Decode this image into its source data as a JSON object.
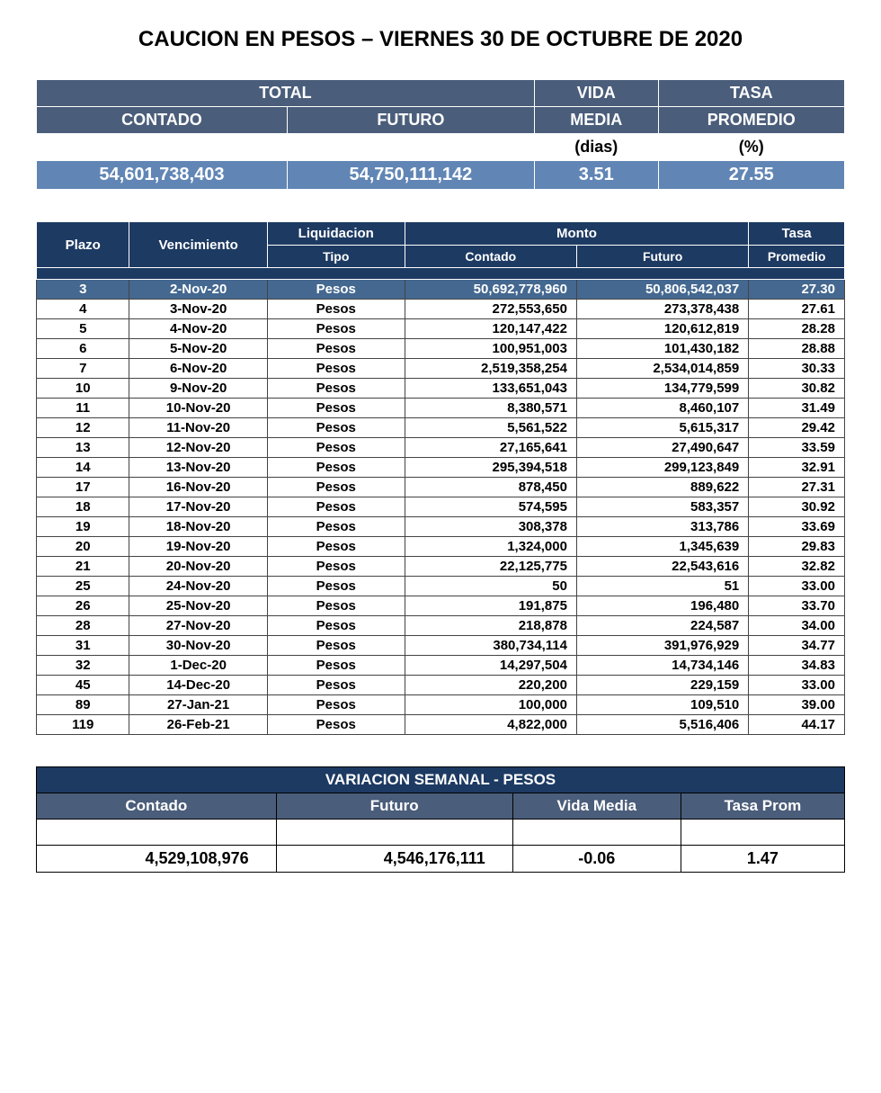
{
  "title": "CAUCION EN PESOS – VIERNES 30 DE OCTUBRE DE 2020",
  "summary": {
    "headers": {
      "total": "TOTAL",
      "vida": "VIDA",
      "tasa": "TASA",
      "contado": "CONTADO",
      "futuro": "FUTURO",
      "media": "MEDIA",
      "promedio": "PROMEDIO",
      "dias": "(dias)",
      "pct": "(%)"
    },
    "values": {
      "contado": "54,601,738,403",
      "futuro": "54,750,111,142",
      "vida_media": "3.51",
      "tasa_promedio": "27.55"
    },
    "colors": {
      "header_bg": "#4a5d7a",
      "header_fg": "#ffffff",
      "value_bg": "#6186b5",
      "value_fg": "#ffffff"
    }
  },
  "detail": {
    "headers": {
      "plazo": "Plazo",
      "vencimiento": "Vencimiento",
      "liquidacion": "Liquidacion",
      "tipo": "Tipo",
      "monto": "Monto",
      "contado": "Contado",
      "futuro": "Futuro",
      "tasa": "Tasa",
      "promedio": "Promedio"
    },
    "colors": {
      "header_bg": "#1d3a62",
      "header_fg": "#ffffff",
      "highlight_bg": "#446890",
      "highlight_fg": "#ffffff",
      "border": "#444444"
    },
    "rows": [
      {
        "plazo": "3",
        "venc": "2-Nov-20",
        "tipo": "Pesos",
        "contado": "50,692,778,960",
        "futuro": "50,806,542,037",
        "tasa": "27.30",
        "highlight": true
      },
      {
        "plazo": "4",
        "venc": "3-Nov-20",
        "tipo": "Pesos",
        "contado": "272,553,650",
        "futuro": "273,378,438",
        "tasa": "27.61"
      },
      {
        "plazo": "5",
        "venc": "4-Nov-20",
        "tipo": "Pesos",
        "contado": "120,147,422",
        "futuro": "120,612,819",
        "tasa": "28.28"
      },
      {
        "plazo": "6",
        "venc": "5-Nov-20",
        "tipo": "Pesos",
        "contado": "100,951,003",
        "futuro": "101,430,182",
        "tasa": "28.88"
      },
      {
        "plazo": "7",
        "venc": "6-Nov-20",
        "tipo": "Pesos",
        "contado": "2,519,358,254",
        "futuro": "2,534,014,859",
        "tasa": "30.33"
      },
      {
        "plazo": "10",
        "venc": "9-Nov-20",
        "tipo": "Pesos",
        "contado": "133,651,043",
        "futuro": "134,779,599",
        "tasa": "30.82"
      },
      {
        "plazo": "11",
        "venc": "10-Nov-20",
        "tipo": "Pesos",
        "contado": "8,380,571",
        "futuro": "8,460,107",
        "tasa": "31.49"
      },
      {
        "plazo": "12",
        "venc": "11-Nov-20",
        "tipo": "Pesos",
        "contado": "5,561,522",
        "futuro": "5,615,317",
        "tasa": "29.42"
      },
      {
        "plazo": "13",
        "venc": "12-Nov-20",
        "tipo": "Pesos",
        "contado": "27,165,641",
        "futuro": "27,490,647",
        "tasa": "33.59"
      },
      {
        "plazo": "14",
        "venc": "13-Nov-20",
        "tipo": "Pesos",
        "contado": "295,394,518",
        "futuro": "299,123,849",
        "tasa": "32.91"
      },
      {
        "plazo": "17",
        "venc": "16-Nov-20",
        "tipo": "Pesos",
        "contado": "878,450",
        "futuro": "889,622",
        "tasa": "27.31"
      },
      {
        "plazo": "18",
        "venc": "17-Nov-20",
        "tipo": "Pesos",
        "contado": "574,595",
        "futuro": "583,357",
        "tasa": "30.92"
      },
      {
        "plazo": "19",
        "venc": "18-Nov-20",
        "tipo": "Pesos",
        "contado": "308,378",
        "futuro": "313,786",
        "tasa": "33.69"
      },
      {
        "plazo": "20",
        "venc": "19-Nov-20",
        "tipo": "Pesos",
        "contado": "1,324,000",
        "futuro": "1,345,639",
        "tasa": "29.83"
      },
      {
        "plazo": "21",
        "venc": "20-Nov-20",
        "tipo": "Pesos",
        "contado": "22,125,775",
        "futuro": "22,543,616",
        "tasa": "32.82"
      },
      {
        "plazo": "25",
        "venc": "24-Nov-20",
        "tipo": "Pesos",
        "contado": "50",
        "futuro": "51",
        "tasa": "33.00"
      },
      {
        "plazo": "26",
        "venc": "25-Nov-20",
        "tipo": "Pesos",
        "contado": "191,875",
        "futuro": "196,480",
        "tasa": "33.70"
      },
      {
        "plazo": "28",
        "venc": "27-Nov-20",
        "tipo": "Pesos",
        "contado": "218,878",
        "futuro": "224,587",
        "tasa": "34.00"
      },
      {
        "plazo": "31",
        "venc": "30-Nov-20",
        "tipo": "Pesos",
        "contado": "380,734,114",
        "futuro": "391,976,929",
        "tasa": "34.77"
      },
      {
        "plazo": "32",
        "venc": "1-Dec-20",
        "tipo": "Pesos",
        "contado": "14,297,504",
        "futuro": "14,734,146",
        "tasa": "34.83"
      },
      {
        "plazo": "45",
        "venc": "14-Dec-20",
        "tipo": "Pesos",
        "contado": "220,200",
        "futuro": "229,159",
        "tasa": "33.00"
      },
      {
        "plazo": "89",
        "venc": "27-Jan-21",
        "tipo": "Pesos",
        "contado": "100,000",
        "futuro": "109,510",
        "tasa": "39.00"
      },
      {
        "plazo": "119",
        "venc": "26-Feb-21",
        "tipo": "Pesos",
        "contado": "4,822,000",
        "futuro": "5,516,406",
        "tasa": "44.17"
      }
    ]
  },
  "weekly": {
    "title": "VARIACION SEMANAL - PESOS",
    "headers": {
      "contado": "Contado",
      "futuro": "Futuro",
      "vida_media": "Vida Media",
      "tasa_prom": "Tasa Prom"
    },
    "values": {
      "contado": "4,529,108,976",
      "futuro": "4,546,176,111",
      "vida_media": "-0.06",
      "tasa_prom": "1.47"
    },
    "colors": {
      "title_bg": "#1d3a62",
      "header_bg": "#4a5d7a",
      "fg": "#ffffff"
    }
  }
}
